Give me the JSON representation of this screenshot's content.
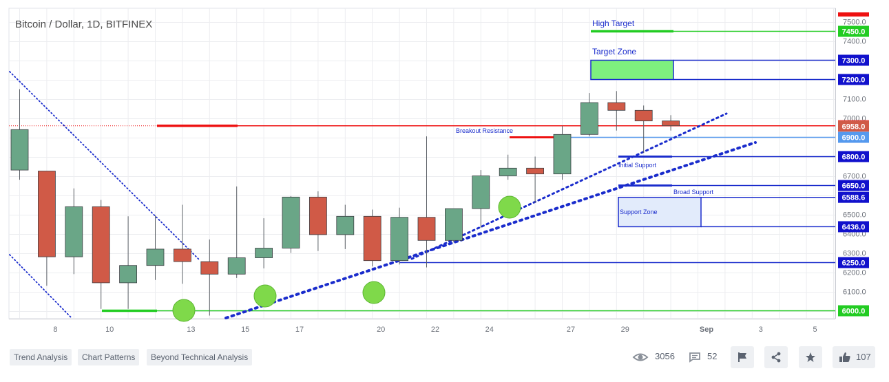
{
  "chart_data": {
    "type": "candlestick",
    "title": "Bitcoin / Dollar, 1D, BITFINEX",
    "ylim": [
      5970,
      7520
    ],
    "y_ticks": [
      6000,
      6100,
      6200,
      6300,
      6400,
      6500,
      6600,
      6700,
      6800,
      6900,
      7000,
      7100,
      7200,
      7300,
      7400,
      7500
    ],
    "y_tick_labels": [
      "6000.0",
      "6100.0",
      "6200.0",
      "6300.0",
      "6400.0",
      "6500.0",
      "6600.0",
      "6700.0",
      "6800.0",
      "6900.0",
      "7000.0",
      "7100.0",
      "7200.0",
      "7300.0",
      "7400.0",
      "7500.0"
    ],
    "x_tick_labels": [
      {
        "label": "8",
        "day": 1
      },
      {
        "label": "10",
        "day": 3
      },
      {
        "label": "13",
        "day": 6
      },
      {
        "label": "15",
        "day": 8
      },
      {
        "label": "17",
        "day": 10
      },
      {
        "label": "20",
        "day": 13
      },
      {
        "label": "22",
        "day": 15
      },
      {
        "label": "24",
        "day": 17
      },
      {
        "label": "27",
        "day": 20
      },
      {
        "label": "29",
        "day": 22
      },
      {
        "label": "Sep",
        "day": 25
      },
      {
        "label": "3",
        "day": 27
      },
      {
        "label": "5",
        "day": 29
      }
    ],
    "candles": [
      {
        "day": 0,
        "o": 6730,
        "h": 7150,
        "l": 6680,
        "c": 6940
      },
      {
        "day": 1,
        "o": 6725,
        "h": 6725,
        "l": 6130,
        "c": 6280
      },
      {
        "day": 2,
        "o": 6280,
        "h": 6635,
        "l": 6190,
        "c": 6540
      },
      {
        "day": 3,
        "o": 6540,
        "h": 6575,
        "l": 6010,
        "c": 6145
      },
      {
        "day": 4,
        "o": 6145,
        "h": 6490,
        "l": 6010,
        "c": 6235
      },
      {
        "day": 5,
        "o": 6235,
        "h": 6495,
        "l": 6160,
        "c": 6320
      },
      {
        "day": 6,
        "o": 6320,
        "h": 6550,
        "l": 6140,
        "c": 6255
      },
      {
        "day": 7,
        "o": 6255,
        "h": 6370,
        "l": 5975,
        "c": 6190
      },
      {
        "day": 8,
        "o": 6190,
        "h": 6645,
        "l": 6170,
        "c": 6275
      },
      {
        "day": 9,
        "o": 6275,
        "h": 6480,
        "l": 6220,
        "c": 6325
      },
      {
        "day": 10,
        "o": 6325,
        "h": 6595,
        "l": 6300,
        "c": 6590
      },
      {
        "day": 11,
        "o": 6590,
        "h": 6620,
        "l": 6310,
        "c": 6395
      },
      {
        "day": 12,
        "o": 6395,
        "h": 6550,
        "l": 6320,
        "c": 6490
      },
      {
        "day": 13,
        "o": 6490,
        "h": 6525,
        "l": 6230,
        "c": 6260
      },
      {
        "day": 14,
        "o": 6260,
        "h": 6535,
        "l": 6240,
        "c": 6485
      },
      {
        "day": 15,
        "o": 6485,
        "h": 6905,
        "l": 6225,
        "c": 6365
      },
      {
        "day": 16,
        "o": 6365,
        "h": 6530,
        "l": 6355,
        "c": 6530
      },
      {
        "day": 17,
        "o": 6530,
        "h": 6730,
        "l": 6430,
        "c": 6700
      },
      {
        "day": 18,
        "o": 6700,
        "h": 6810,
        "l": 6680,
        "c": 6740
      },
      {
        "day": 19,
        "o": 6740,
        "h": 6800,
        "l": 6560,
        "c": 6710
      },
      {
        "day": 20,
        "o": 6710,
        "h": 6960,
        "l": 6680,
        "c": 6915
      },
      {
        "day": 21,
        "o": 6915,
        "h": 7130,
        "l": 6905,
        "c": 7080
      },
      {
        "day": 22,
        "o": 7080,
        "h": 7140,
        "l": 6935,
        "c": 7040
      },
      {
        "day": 23,
        "o": 7040,
        "h": 7065,
        "l": 6820,
        "c": 6985
      },
      {
        "day": 24,
        "o": 6985,
        "h": 7015,
        "l": 6935,
        "c": 6960
      }
    ],
    "horizontal_levels": [
      {
        "price": 7450,
        "label": "7450.0",
        "color": "#22cc22"
      },
      {
        "price": 7300,
        "label": "7300.0",
        "color": "#1111cc"
      },
      {
        "price": 7200,
        "label": "7200.0",
        "color": "#1111cc"
      },
      {
        "price": 6960,
        "label": "6960.0",
        "color": "#ee1111"
      },
      {
        "price": 6900,
        "label": "6900.0",
        "color": "#5599ee"
      },
      {
        "price": 6800,
        "label": "6800.0",
        "color": "#1111cc"
      },
      {
        "price": 6650,
        "label": "6650.0",
        "color": "#1111cc"
      },
      {
        "price": 6588.6,
        "label": "6588.6",
        "color": "#1111cc"
      },
      {
        "price": 6436,
        "label": "6436.0",
        "color": "#1111cc"
      },
      {
        "price": 6250,
        "label": "6250.0",
        "color": "#1111cc"
      },
      {
        "price": 6000,
        "label": "6000.0",
        "color": "#22cc22"
      }
    ],
    "last_price": {
      "price": 6958,
      "label": "6958.0",
      "color": "#d05a47"
    },
    "top_marker_color": "#ee1111",
    "annotations": [
      {
        "text": "High Target",
        "color": "#1a2ccc"
      },
      {
        "text": "Target Zone",
        "color": "#1a2ccc"
      },
      {
        "text": "Breakout Resistance",
        "color": "#1a2ccc"
      },
      {
        "text": "Initial Support",
        "color": "#1a2ccc"
      },
      {
        "text": "Broad Support",
        "color": "#1a2ccc"
      },
      {
        "text": "Support Zone",
        "color": "#1a2ccc"
      }
    ],
    "colors": {
      "up": "#6aa687",
      "down": "#d05a47",
      "grid": "#ecedf0",
      "trend": "#1a2ccc",
      "green_level": "#22cc22",
      "resistance": "#ee1111",
      "marker_circle": "#7fd94a"
    },
    "grid": true
  },
  "tags": [
    "Trend Analysis",
    "Chart Patterns",
    "Beyond Technical Analysis"
  ],
  "stats": {
    "views": "3056",
    "comments": "52",
    "likes": "107"
  },
  "icons": [
    "eye-icon",
    "comment-icon",
    "flag-icon",
    "share-icon",
    "star-icon",
    "thumbs-up-icon"
  ]
}
